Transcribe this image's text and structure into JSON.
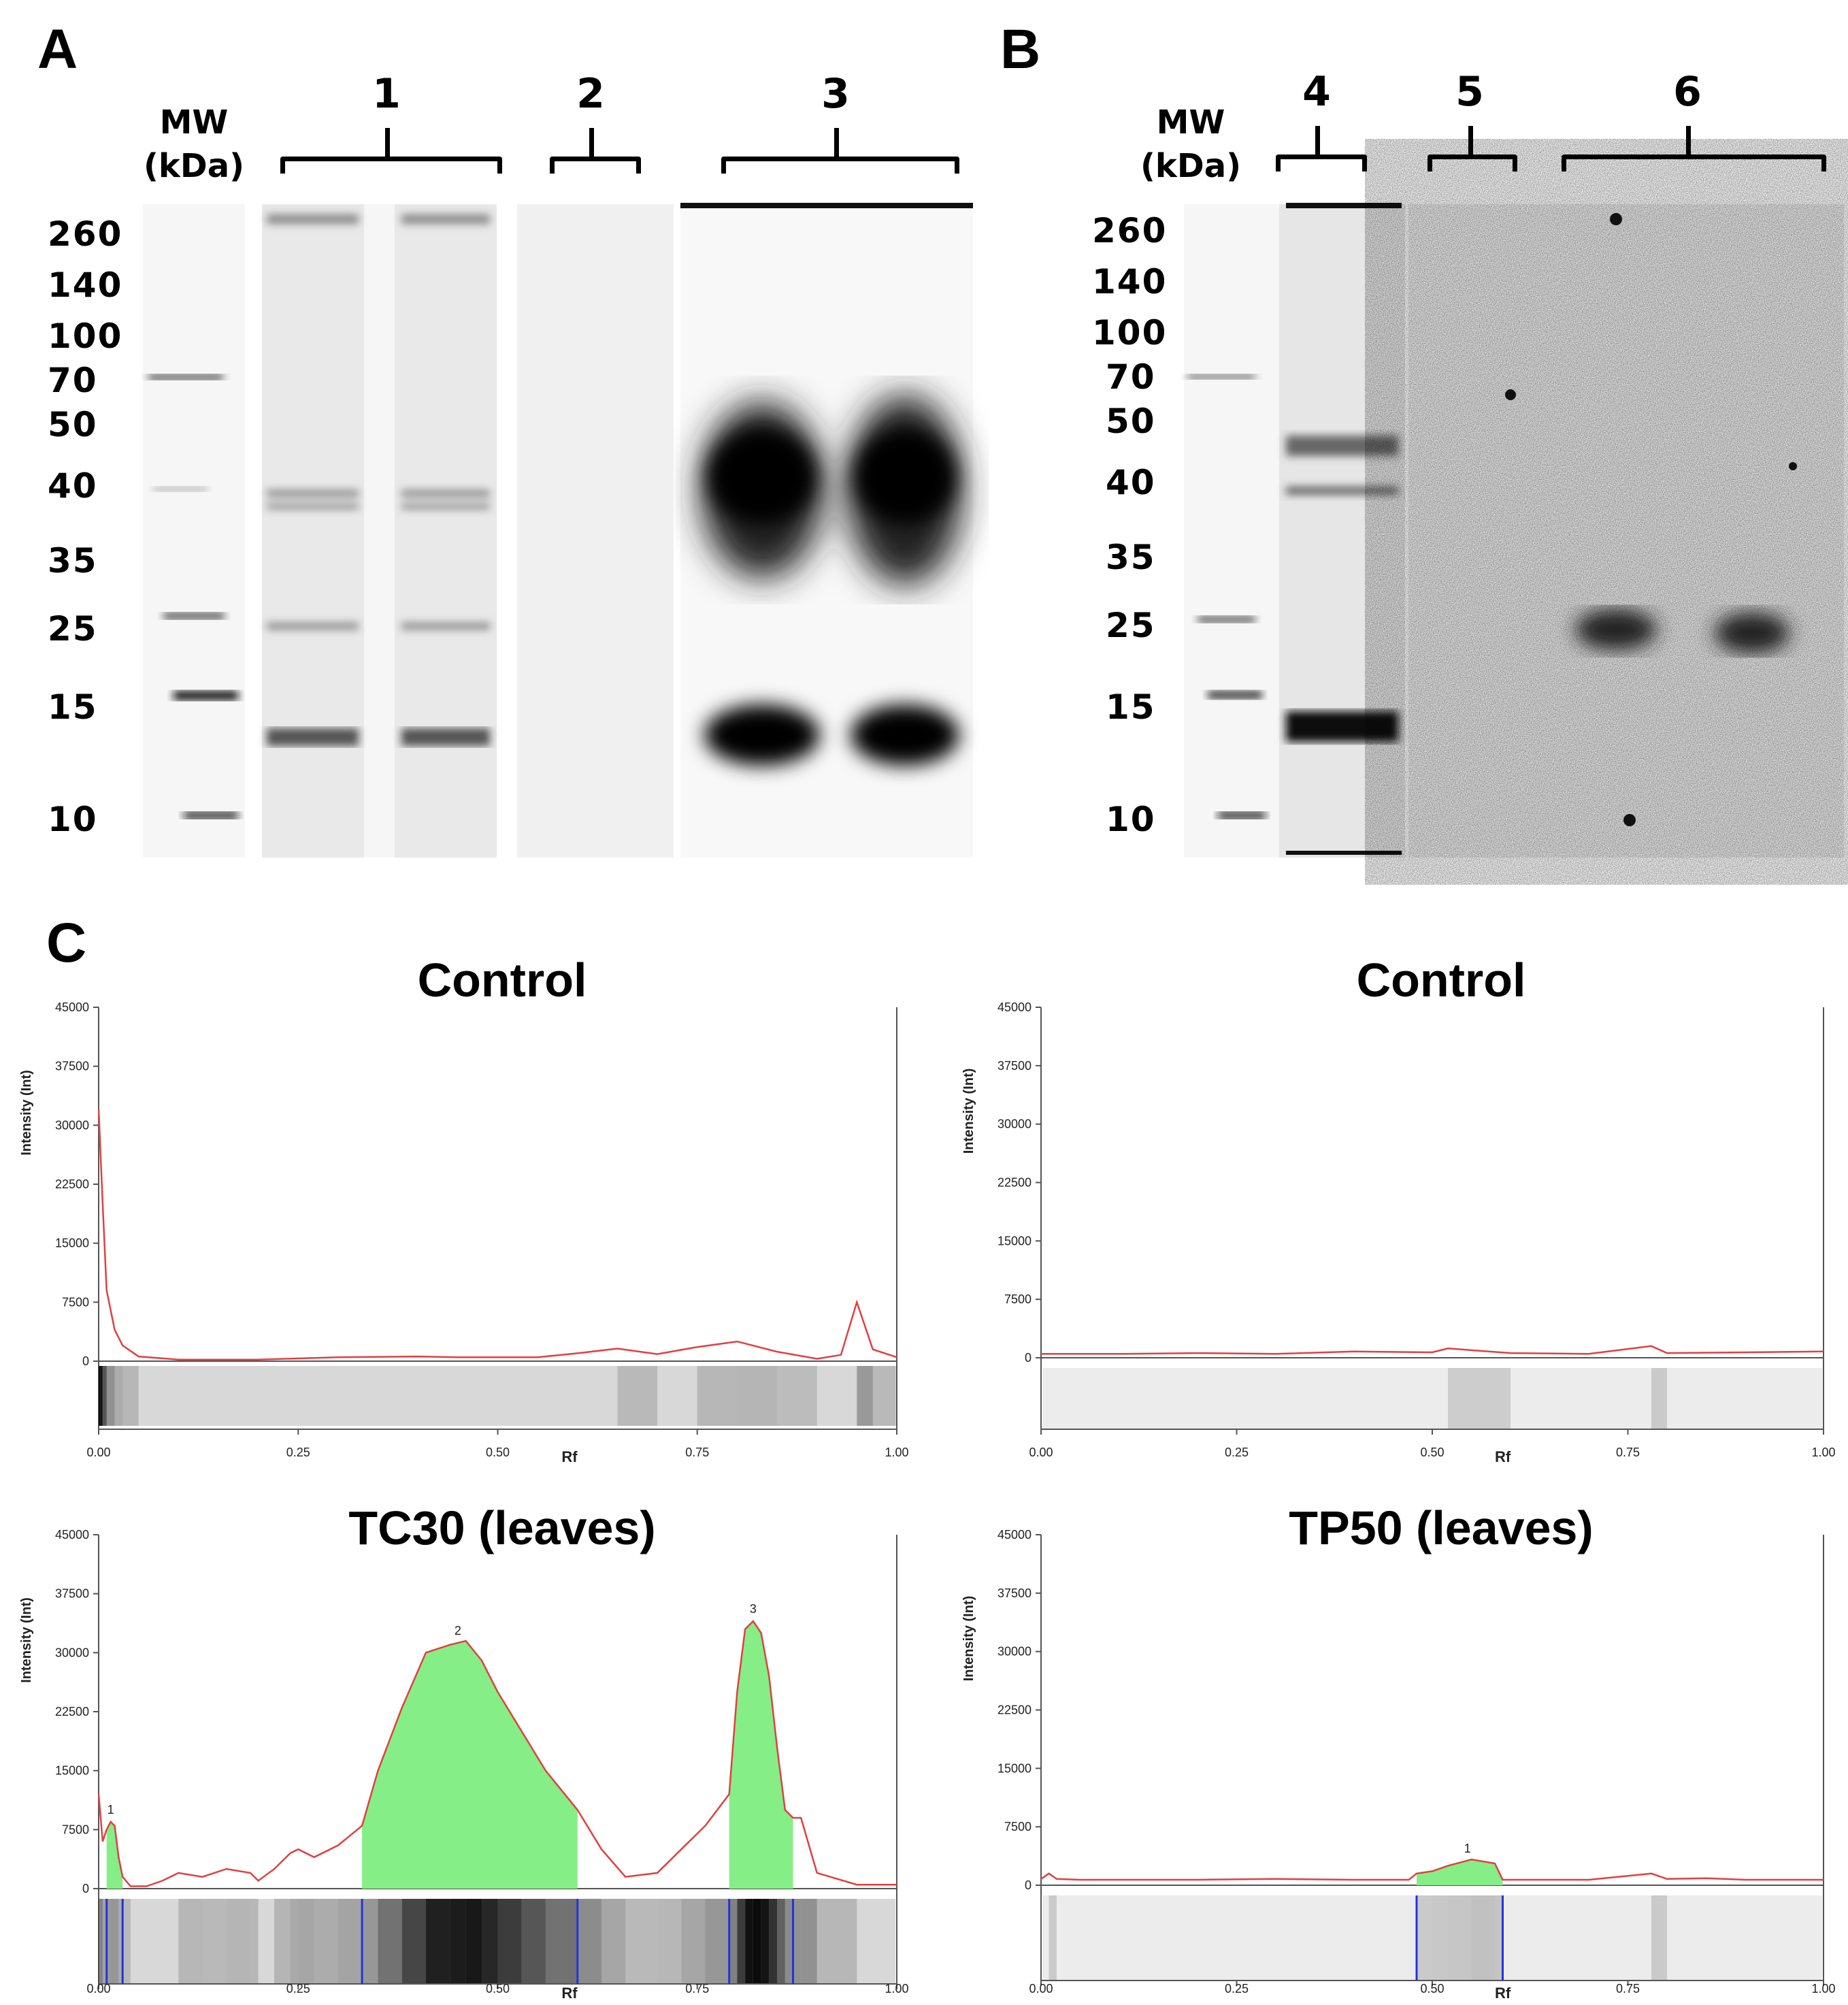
{
  "panels": {
    "a": "A",
    "b": "B",
    "c": "C"
  },
  "mw_heading": {
    "line1": "MW",
    "line2": "(kDa)"
  },
  "mw_markers": [
    "260",
    "140",
    "100",
    "70",
    "50",
    "40",
    "35",
    "25",
    "15",
    "10"
  ],
  "lanes": {
    "a": [
      "1",
      "2",
      "3"
    ],
    "b": [
      "4",
      "5",
      "6"
    ]
  },
  "chart_data": [
    {
      "type": "line",
      "title": "Control",
      "ylabel": "Intensity (Int)",
      "xlabel": "Rf",
      "xlim": [
        0,
        1
      ],
      "ylim": [
        0,
        45000
      ],
      "yticks": [
        "0",
        "7500",
        "15000",
        "22500",
        "30000",
        "37500",
        "45000"
      ],
      "xticks": [
        "0.00",
        "0.25",
        "0.50",
        "0.75",
        "1.00"
      ],
      "series": [
        {
          "x": [
            0,
            0.005,
            0.01,
            0.02,
            0.03,
            0.05,
            0.1,
            0.2,
            0.3,
            0.4,
            0.45,
            0.55,
            0.6,
            0.65,
            0.7,
            0.75,
            0.8,
            0.85,
            0.9,
            0.93,
            0.95,
            0.97,
            1.0
          ],
          "y": [
            32000,
            20000,
            9000,
            4000,
            2000,
            600,
            200,
            200,
            500,
            600,
            500,
            500,
            1000,
            1600,
            900,
            1800,
            2500,
            1200,
            300,
            800,
            7500,
            1500,
            500
          ]
        }
      ],
      "peaks": [],
      "color": "#e04040"
    },
    {
      "type": "line",
      "title": "Control",
      "ylabel": "Intensity (Int)",
      "xlabel": "Rf",
      "xlim": [
        0,
        1
      ],
      "ylim": [
        0,
        45000
      ],
      "yticks": [
        "0",
        "7500",
        "15000",
        "22500",
        "30000",
        "37500",
        "45000"
      ],
      "xticks": [
        "0.00",
        "0.25",
        "0.50",
        "0.75",
        "1.00"
      ],
      "series": [
        {
          "x": [
            0,
            0.1,
            0.2,
            0.3,
            0.4,
            0.5,
            0.52,
            0.6,
            0.7,
            0.78,
            0.8,
            0.9,
            1.0
          ],
          "y": [
            500,
            500,
            600,
            500,
            800,
            700,
            1200,
            600,
            500,
            1500,
            600,
            700,
            800
          ]
        }
      ],
      "peaks": [],
      "color": "#e04040"
    },
    {
      "type": "area",
      "title": "TC30 (leaves)",
      "ylabel": "Intensity (Int)",
      "xlabel": "Rf",
      "xlim": [
        0,
        1
      ],
      "ylim": [
        0,
        45000
      ],
      "yticks": [
        "0",
        "7500",
        "15000",
        "22500",
        "30000",
        "37500",
        "45000"
      ],
      "xticks": [
        "0.00",
        "0.25",
        "0.50",
        "0.75",
        "1.00"
      ],
      "series": [
        {
          "x": [
            0,
            0.005,
            0.01,
            0.015,
            0.02,
            0.025,
            0.03,
            0.04,
            0.06,
            0.08,
            0.1,
            0.13,
            0.16,
            0.19,
            0.2,
            0.22,
            0.24,
            0.25,
            0.27,
            0.3,
            0.33,
            0.35,
            0.38,
            0.41,
            0.44,
            0.46,
            0.48,
            0.5,
            0.53,
            0.56,
            0.6,
            0.63,
            0.66,
            0.7,
            0.73,
            0.76,
            0.79,
            0.8,
            0.81,
            0.82,
            0.83,
            0.84,
            0.85,
            0.86,
            0.87,
            0.88,
            0.9,
            0.95,
            1.0
          ],
          "y": [
            12000,
            6000,
            7500,
            8500,
            8000,
            4000,
            1500,
            300,
            300,
            1000,
            2000,
            1500,
            2500,
            2000,
            1000,
            2500,
            4500,
            5000,
            4000,
            5500,
            8000,
            15000,
            23000,
            30000,
            31000,
            31500,
            29000,
            25000,
            20000,
            15000,
            10000,
            5000,
            1500,
            2000,
            5000,
            8000,
            12000,
            25000,
            33000,
            34000,
            32500,
            27000,
            18000,
            10000,
            9000,
            9000,
            2000,
            500,
            500
          ]
        }
      ],
      "peaks": [
        {
          "label": "1",
          "x": 0.015,
          "start": 0.01,
          "end": 0.03
        },
        {
          "label": "2",
          "x": 0.45,
          "start": 0.33,
          "end": 0.6
        },
        {
          "label": "3",
          "x": 0.82,
          "start": 0.79,
          "end": 0.87
        }
      ],
      "color": "#e04040",
      "fill": "#86ee86"
    },
    {
      "type": "area",
      "title": "TP50 (leaves)",
      "ylabel": "Intensity (Int)",
      "xlabel": "Rf",
      "xlim": [
        0,
        1
      ],
      "ylim": [
        0,
        45000
      ],
      "yticks": [
        "0",
        "7500",
        "15000",
        "22500",
        "30000",
        "37500",
        "45000"
      ],
      "xticks": [
        "0.00",
        "0.25",
        "0.50",
        "0.75",
        "1.00"
      ],
      "series": [
        {
          "x": [
            0,
            0.01,
            0.02,
            0.05,
            0.1,
            0.2,
            0.3,
            0.4,
            0.47,
            0.48,
            0.5,
            0.52,
            0.55,
            0.58,
            0.59,
            0.62,
            0.7,
            0.78,
            0.8,
            0.85,
            0.9,
            1.0
          ],
          "y": [
            800,
            1500,
            800,
            700,
            700,
            700,
            800,
            700,
            700,
            1500,
            1800,
            2500,
            3300,
            2800,
            700,
            700,
            700,
            1500,
            800,
            900,
            700,
            700
          ]
        }
      ],
      "peaks": [
        {
          "label": "1",
          "x": 0.545,
          "start": 0.48,
          "end": 0.59
        }
      ],
      "color": "#e04040",
      "fill": "#86ee86"
    }
  ]
}
